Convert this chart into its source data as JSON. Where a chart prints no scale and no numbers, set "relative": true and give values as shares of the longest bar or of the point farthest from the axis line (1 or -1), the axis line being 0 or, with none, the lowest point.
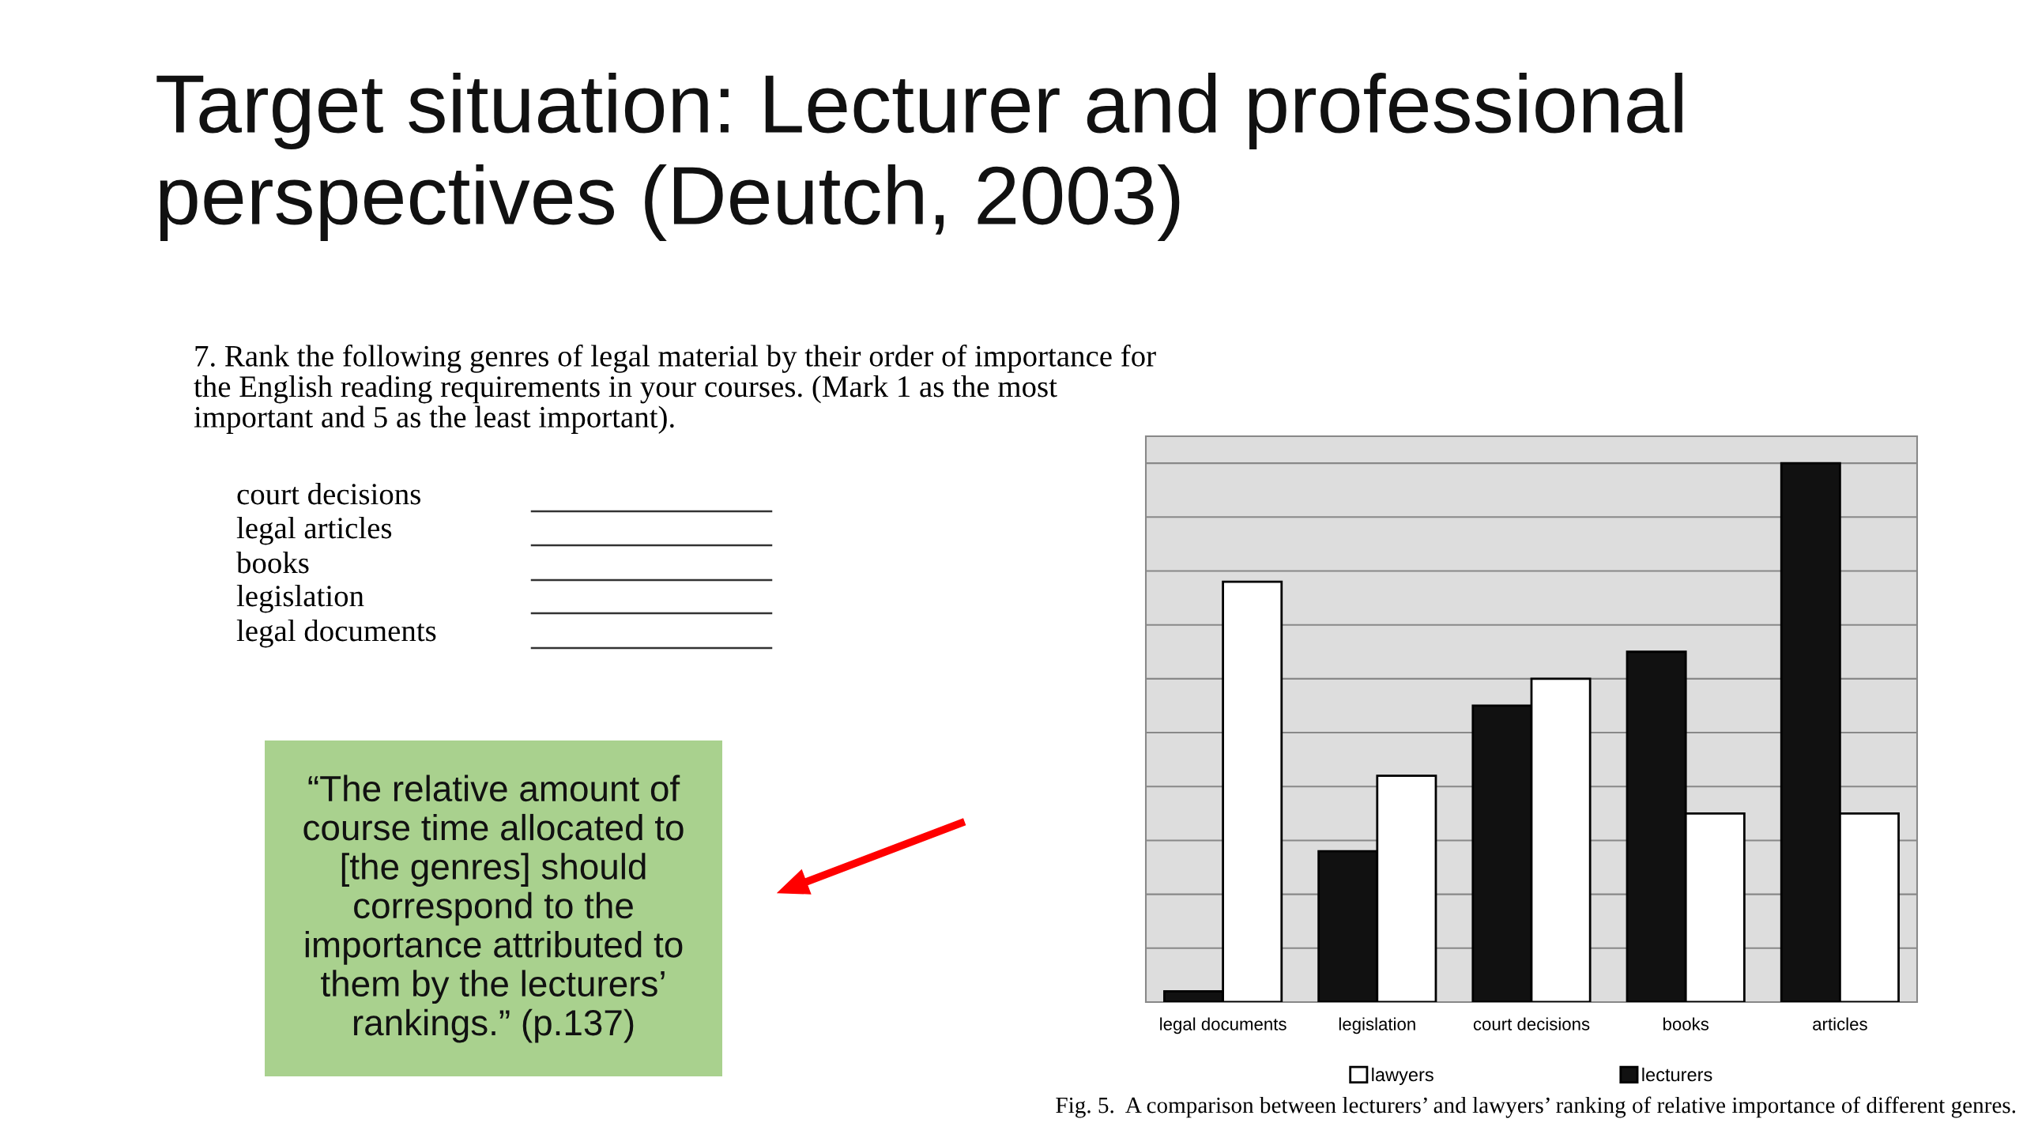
{
  "chart_data": {
    "type": "bar",
    "title": "Target situation: Lecturer and professional perspectives (Deutch, 2003)",
    "categories": [
      "legal documents",
      "legislation",
      "court decisions",
      "books",
      "articles"
    ],
    "series": [
      {
        "name": "lecturers",
        "color": "#111111",
        "values": [
          0.02,
          0.28,
          0.55,
          0.65,
          1.0
        ]
      },
      {
        "name": "lawyers",
        "color": "#ffffff",
        "values": [
          0.78,
          0.42,
          0.6,
          0.35,
          0.35
        ]
      }
    ],
    "relative": true,
    "grid": "y",
    "legend": "bottom",
    "annotations": [
      "7. Rank the following genres of legal material by their order of importance for\nthe English reading requirements in your courses. (Mark 1 as the most\nimportant and 5 as the least important).",
      "court decisions",
      "legal articles",
      "books",
      "legislation",
      "legal documents",
      "“The relative amount of\ncourse time allocated to\n[the genres] should\ncorrespond to the\nimportance attributed to\nthem by the lecturers’\nrankings.” (p.137)",
      "Fig. 5.  A comparison between lecturers’ and lawyers’ ranking of relative importance of different genres."
    ]
  }
}
